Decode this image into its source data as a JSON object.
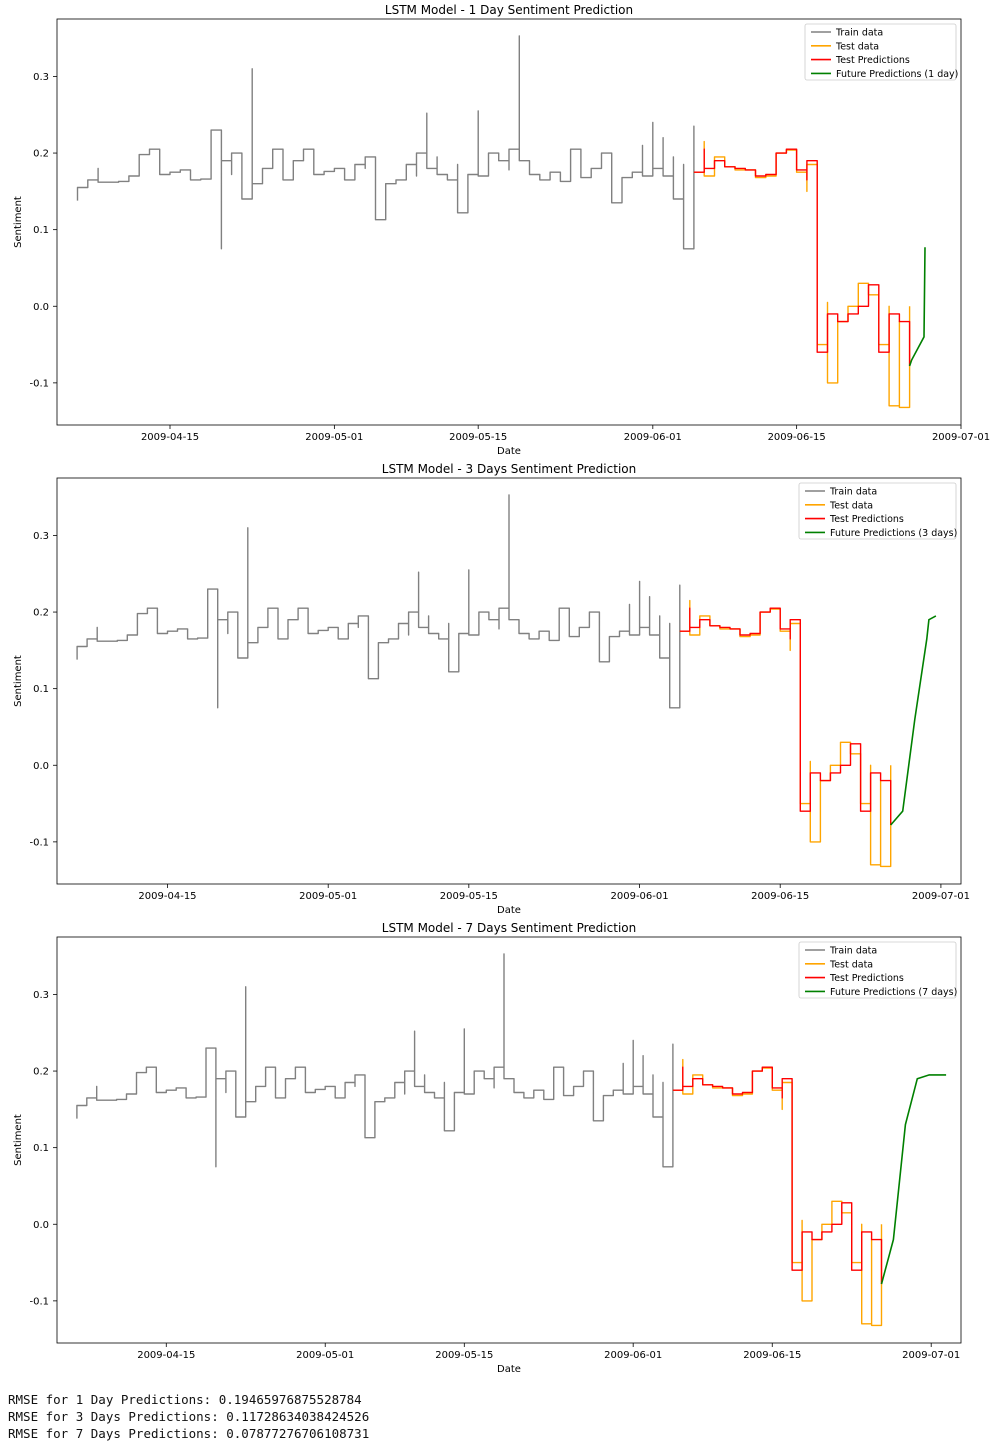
{
  "colors": {
    "train": "#808080",
    "test": "#ffa500",
    "test_pred": "#ff0000",
    "future": "#008000"
  },
  "rmse_lines": [
    "RMSE for 1 Day Predictions: 0.19465976875528784",
    "RMSE for 3 Days Predictions: 0.11728634038424526",
    "RMSE for 7 Days Predictions: 0.07877276706108731"
  ],
  "chart_data": [
    {
      "type": "line",
      "title": "LSTM Model - 1 Day Sentiment Prediction",
      "xlabel": "Date",
      "ylabel": "Sentiment",
      "x_ticks": [
        "2009-04-15",
        "2009-05-01",
        "2009-05-15",
        "2009-06-01",
        "2009-06-15",
        "2009-07-01"
      ],
      "y_ticks": [
        -0.1,
        0.0,
        0.1,
        0.2,
        0.3
      ],
      "xlim": [
        "2009-04-04",
        "2009-07-01"
      ],
      "ylim": [
        -0.155,
        0.375
      ],
      "legend_position": "top-right",
      "future_horizon_days": 1,
      "series": [
        {
          "name": "Train data",
          "key": "train"
        },
        {
          "name": "Test data",
          "key": "test"
        },
        {
          "name": "Test Predictions",
          "key": "test_pred"
        },
        {
          "name": "Future Predictions (1 day)",
          "key": "future"
        }
      ]
    },
    {
      "type": "line",
      "title": "LSTM Model - 3 Days Sentiment Prediction",
      "xlabel": "Date",
      "ylabel": "Sentiment",
      "x_ticks": [
        "2009-04-15",
        "2009-05-01",
        "2009-05-15",
        "2009-06-01",
        "2009-06-15",
        "2009-07-01"
      ],
      "y_ticks": [
        -0.1,
        0.0,
        0.1,
        0.2,
        0.3
      ],
      "xlim": [
        "2009-04-04",
        "2009-07-03"
      ],
      "ylim": [
        -0.155,
        0.375
      ],
      "legend_position": "top-right",
      "future_horizon_days": 3,
      "series": [
        {
          "name": "Train data",
          "key": "train"
        },
        {
          "name": "Test data",
          "key": "test"
        },
        {
          "name": "Test Predictions",
          "key": "test_pred"
        },
        {
          "name": "Future Predictions (3 days)",
          "key": "future"
        }
      ]
    },
    {
      "type": "line",
      "title": "LSTM Model - 7 Days Sentiment Prediction",
      "xlabel": "Date",
      "ylabel": "Sentiment",
      "x_ticks": [
        "2009-04-15",
        "2009-05-01",
        "2009-05-15",
        "2009-06-01",
        "2009-06-15",
        "2009-07-01"
      ],
      "y_ticks": [
        -0.1,
        0.0,
        0.1,
        0.2,
        0.3
      ],
      "xlim": [
        "2009-04-04",
        "2009-07-04"
      ],
      "ylim": [
        -0.155,
        0.375
      ],
      "legend_position": "top-right",
      "future_horizon_days": 7,
      "series": [
        {
          "name": "Train data",
          "key": "train"
        },
        {
          "name": "Test data",
          "key": "test"
        },
        {
          "name": "Test Predictions",
          "key": "test_pred"
        },
        {
          "name": "Future Predictions (7 days)",
          "key": "future"
        }
      ]
    }
  ],
  "series_data": {
    "train": [
      [
        "2009-04-06",
        0.138
      ],
      [
        "2009-04-06",
        0.155
      ],
      [
        "2009-04-07",
        0.155
      ],
      [
        "2009-04-07",
        0.165
      ],
      [
        "2009-04-08",
        0.165
      ],
      [
        "2009-04-08",
        0.18
      ],
      [
        "2009-04-08",
        0.162
      ],
      [
        "2009-04-10",
        0.163
      ],
      [
        "2009-04-11",
        0.17
      ],
      [
        "2009-04-12",
        0.198
      ],
      [
        "2009-04-13",
        0.205
      ],
      [
        "2009-04-14",
        0.172
      ],
      [
        "2009-04-15",
        0.175
      ],
      [
        "2009-04-16",
        0.178
      ],
      [
        "2009-04-17",
        0.165
      ],
      [
        "2009-04-18",
        0.166
      ],
      [
        "2009-04-19",
        0.23
      ],
      [
        "2009-04-20",
        0.18
      ],
      [
        "2009-04-20",
        0.075
      ],
      [
        "2009-04-20",
        0.19
      ],
      [
        "2009-04-21",
        0.172
      ],
      [
        "2009-04-21",
        0.2
      ],
      [
        "2009-04-22",
        0.18
      ],
      [
        "2009-04-22",
        0.14
      ],
      [
        "2009-04-23",
        0.185
      ],
      [
        "2009-04-23",
        0.31
      ],
      [
        "2009-04-23",
        0.16
      ],
      [
        "2009-04-24",
        0.18
      ],
      [
        "2009-04-25",
        0.205
      ],
      [
        "2009-04-26",
        0.165
      ],
      [
        "2009-04-27",
        0.19
      ],
      [
        "2009-04-28",
        0.205
      ],
      [
        "2009-04-29",
        0.172
      ],
      [
        "2009-04-30",
        0.176
      ],
      [
        "2009-05-01",
        0.18
      ],
      [
        "2009-05-02",
        0.165
      ],
      [
        "2009-05-03",
        0.185
      ],
      [
        "2009-05-04",
        0.18
      ],
      [
        "2009-05-04",
        0.195
      ],
      [
        "2009-05-05",
        0.17
      ],
      [
        "2009-05-05",
        0.113
      ],
      [
        "2009-05-06",
        0.16
      ],
      [
        "2009-05-07",
        0.165
      ],
      [
        "2009-05-08",
        0.185
      ],
      [
        "2009-05-09",
        0.17
      ],
      [
        "2009-05-09",
        0.2
      ],
      [
        "2009-05-10",
        0.23
      ],
      [
        "2009-05-10",
        0.252
      ],
      [
        "2009-05-10",
        0.18
      ],
      [
        "2009-05-11",
        0.195
      ],
      [
        "2009-05-11",
        0.172
      ],
      [
        "2009-05-12",
        0.165
      ],
      [
        "2009-05-13",
        0.185
      ],
      [
        "2009-05-13",
        0.122
      ],
      [
        "2009-05-14",
        0.172
      ],
      [
        "2009-05-15",
        0.255
      ],
      [
        "2009-05-15",
        0.17
      ],
      [
        "2009-05-16",
        0.2
      ],
      [
        "2009-05-17",
        0.19
      ],
      [
        "2009-05-18",
        0.178
      ],
      [
        "2009-05-18",
        0.205
      ],
      [
        "2009-05-19",
        0.353
      ],
      [
        "2009-05-19",
        0.19
      ],
      [
        "2009-05-20",
        0.172
      ],
      [
        "2009-05-21",
        0.165
      ],
      [
        "2009-05-22",
        0.175
      ],
      [
        "2009-05-23",
        0.163
      ],
      [
        "2009-05-24",
        0.205
      ],
      [
        "2009-05-25",
        0.168
      ],
      [
        "2009-05-26",
        0.18
      ],
      [
        "2009-05-27",
        0.2
      ],
      [
        "2009-05-28",
        0.135
      ],
      [
        "2009-05-29",
        0.168
      ],
      [
        "2009-05-30",
        0.175
      ],
      [
        "2009-05-31",
        0.21
      ],
      [
        "2009-05-31",
        0.17
      ],
      [
        "2009-06-01",
        0.24
      ],
      [
        "2009-06-01",
        0.18
      ],
      [
        "2009-06-02",
        0.22
      ],
      [
        "2009-06-02",
        0.17
      ],
      [
        "2009-06-03",
        0.195
      ],
      [
        "2009-06-03",
        0.14
      ],
      [
        "2009-06-04",
        0.185
      ],
      [
        "2009-06-04",
        0.075
      ],
      [
        "2009-06-05",
        0.18
      ],
      [
        "2009-06-05",
        0.235
      ],
      [
        "2009-06-05",
        0.175
      ]
    ],
    "test": [
      [
        "2009-06-05",
        0.175
      ],
      [
        "2009-06-06",
        0.215
      ],
      [
        "2009-06-06",
        0.17
      ],
      [
        "2009-06-07",
        0.195
      ],
      [
        "2009-06-08",
        0.182
      ],
      [
        "2009-06-09",
        0.178
      ],
      [
        "2009-06-10",
        0.178
      ],
      [
        "2009-06-11",
        0.168
      ],
      [
        "2009-06-12",
        0.17
      ],
      [
        "2009-06-13",
        0.2
      ],
      [
        "2009-06-14",
        0.204
      ],
      [
        "2009-06-15",
        0.175
      ],
      [
        "2009-06-16",
        0.15
      ],
      [
        "2009-06-16",
        0.185
      ],
      [
        "2009-06-17",
        0.0
      ],
      [
        "2009-06-17",
        -0.05
      ],
      [
        "2009-06-18",
        0.005
      ],
      [
        "2009-06-18",
        -0.1
      ],
      [
        "2009-06-19",
        -0.02
      ],
      [
        "2009-06-20",
        0.0
      ],
      [
        "2009-06-21",
        0.005
      ],
      [
        "2009-06-21",
        0.03
      ],
      [
        "2009-06-22",
        0.015
      ],
      [
        "2009-06-23",
        -0.05
      ],
      [
        "2009-06-24",
        0.0
      ],
      [
        "2009-06-24",
        -0.13
      ],
      [
        "2009-06-25",
        -0.02
      ],
      [
        "2009-06-25",
        -0.132
      ],
      [
        "2009-06-26",
        -0.025
      ],
      [
        "2009-06-26",
        0.0
      ]
    ],
    "test_pred": [
      [
        "2009-06-05",
        0.175
      ],
      [
        "2009-06-06",
        0.205
      ],
      [
        "2009-06-06",
        0.18
      ],
      [
        "2009-06-07",
        0.19
      ],
      [
        "2009-06-08",
        0.182
      ],
      [
        "2009-06-09",
        0.18
      ],
      [
        "2009-06-10",
        0.178
      ],
      [
        "2009-06-11",
        0.17
      ],
      [
        "2009-06-12",
        0.172
      ],
      [
        "2009-06-13",
        0.2
      ],
      [
        "2009-06-14",
        0.205
      ],
      [
        "2009-06-15",
        0.178
      ],
      [
        "2009-06-16",
        0.165
      ],
      [
        "2009-06-16",
        0.19
      ],
      [
        "2009-06-17",
        0.01
      ],
      [
        "2009-06-17",
        -0.06
      ],
      [
        "2009-06-18",
        -0.01
      ],
      [
        "2009-06-19",
        -0.02
      ],
      [
        "2009-06-20",
        -0.01
      ],
      [
        "2009-06-21",
        0.0
      ],
      [
        "2009-06-22",
        0.028
      ],
      [
        "2009-06-23",
        -0.06
      ],
      [
        "2009-06-24",
        -0.01
      ],
      [
        "2009-06-25",
        -0.02
      ],
      [
        "2009-06-26",
        -0.078
      ]
    ],
    "future_1": [
      [
        "2009-06-26",
        -0.078
      ],
      [
        "2009-06-26",
        -0.07
      ],
      [
        "2009-06-27",
        -0.04
      ],
      [
        "2009-06-27",
        0.077
      ]
    ],
    "future_3": [
      [
        "2009-06-26",
        -0.078
      ],
      [
        "2009-06-27",
        -0.06
      ],
      [
        "2009-06-28",
        0.06
      ],
      [
        "2009-06-29",
        0.165
      ],
      [
        "2009-06-29",
        0.19
      ],
      [
        "2009-06-30",
        0.195
      ]
    ],
    "future_7": [
      [
        "2009-06-26",
        -0.078
      ],
      [
        "2009-06-27",
        -0.02
      ],
      [
        "2009-06-28",
        0.13
      ],
      [
        "2009-06-29",
        0.19
      ],
      [
        "2009-06-30",
        0.195
      ],
      [
        "2009-07-01",
        0.195
      ],
      [
        "2009-07-02",
        0.195
      ]
    ]
  }
}
